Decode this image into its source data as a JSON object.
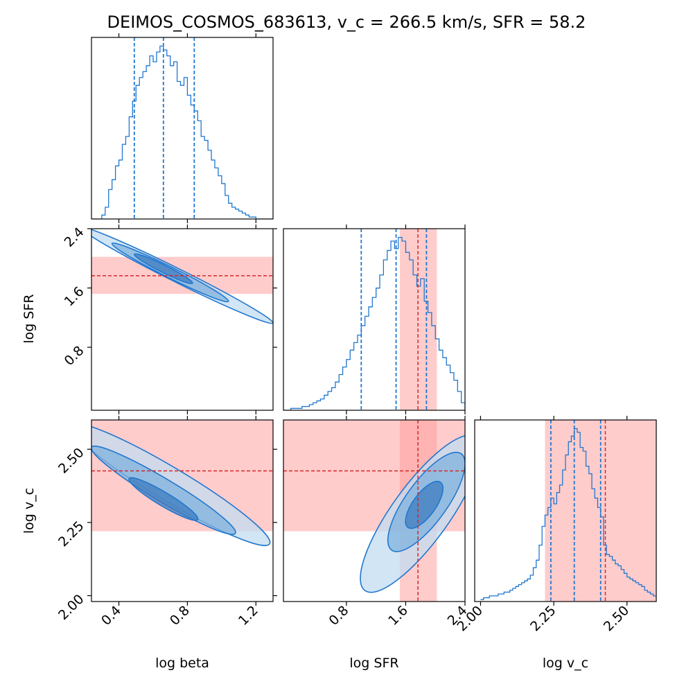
{
  "title": "DEIMOS_COSMOS_683613, v_c = 266.5 km/s, SFR = 58.2",
  "colors": {
    "posterior": "#1f77d0",
    "fill_outer": "#c2dcf0",
    "fill_mid": "#7fb3dd",
    "fill_inner": "#3d7cbf",
    "observed_line": "#d62728",
    "observed_band": "#ff9999"
  },
  "chart_data": {
    "type": "corner",
    "parameters": [
      {
        "name": "log beta",
        "label": "log beta",
        "range": [
          0.24,
          1.3
        ],
        "ticks": [
          0.4,
          0.8,
          1.2
        ],
        "tick_labels": [
          "0.4",
          "0.8",
          "1.2"
        ],
        "quantiles": [
          0.49,
          0.66,
          0.84
        ]
      },
      {
        "name": "log SFR",
        "label": "log SFR",
        "range": [
          -0.05,
          2.4
        ],
        "ticks": [
          0.8,
          1.6,
          2.4
        ],
        "tick_labels": [
          "0.8",
          "1.6",
          "2.4"
        ],
        "quantiles": [
          1.0,
          1.47,
          1.88
        ],
        "observed": {
          "value": 1.765,
          "low": 1.52,
          "high": 2.02
        }
      },
      {
        "name": "log v_c",
        "label": "log v_c",
        "range": [
          1.98,
          2.6
        ],
        "ticks": [
          2.0,
          2.25,
          2.5
        ],
        "tick_labels": [
          "2.00",
          "2.25",
          "2.50"
        ],
        "quantiles": [
          2.24,
          2.32,
          2.41
        ],
        "observed": {
          "value": 2.426,
          "low": 2.22,
          "high": 2.61
        }
      }
    ],
    "histograms": [
      {
        "parameter": "log beta",
        "x": [
          0.24,
          0.26,
          0.28,
          0.3,
          0.32,
          0.34,
          0.36,
          0.38,
          0.4,
          0.42,
          0.44,
          0.46,
          0.48,
          0.5,
          0.52,
          0.54,
          0.56,
          0.58,
          0.6,
          0.62,
          0.64,
          0.66,
          0.68,
          0.7,
          0.72,
          0.74,
          0.76,
          0.78,
          0.8,
          0.82,
          0.84,
          0.86,
          0.88,
          0.9,
          0.92,
          0.94,
          0.96,
          0.98,
          1.0,
          1.02,
          1.04,
          1.06,
          1.08,
          1.1,
          1.12,
          1.14,
          1.16,
          1.18,
          1.2,
          1.22,
          1.24,
          1.26,
          1.28,
          1.3
        ],
        "y": [
          0,
          0,
          0,
          0.02,
          0.06,
          0.15,
          0.2,
          0.27,
          0.3,
          0.38,
          0.42,
          0.52,
          0.6,
          0.68,
          0.72,
          0.75,
          0.78,
          0.83,
          0.8,
          0.85,
          0.88,
          0.86,
          0.83,
          0.78,
          0.8,
          0.7,
          0.68,
          0.72,
          0.63,
          0.58,
          0.55,
          0.5,
          0.42,
          0.4,
          0.35,
          0.3,
          0.26,
          0.22,
          0.18,
          0.12,
          0.08,
          0.06,
          0.05,
          0.04,
          0.03,
          0.02,
          0.01,
          0.01,
          0,
          0,
          0,
          0,
          0,
          0
        ]
      },
      {
        "parameter": "log SFR",
        "x": [
          -0.05,
          0.0,
          0.05,
          0.1,
          0.15,
          0.2,
          0.25,
          0.3,
          0.35,
          0.4,
          0.45,
          0.5,
          0.55,
          0.6,
          0.65,
          0.7,
          0.75,
          0.8,
          0.85,
          0.9,
          0.95,
          1.0,
          1.05,
          1.1,
          1.15,
          1.2,
          1.25,
          1.3,
          1.35,
          1.4,
          1.45,
          1.5,
          1.55,
          1.6,
          1.65,
          1.7,
          1.75,
          1.8,
          1.85,
          1.9,
          1.95,
          2.0,
          2.05,
          2.1,
          2.15,
          2.2,
          2.25,
          2.3,
          2.35,
          2.4
        ],
        "y": [
          0,
          0,
          0.01,
          0.01,
          0.01,
          0.02,
          0.02,
          0.03,
          0.04,
          0.05,
          0.06,
          0.08,
          0.1,
          0.12,
          0.15,
          0.19,
          0.23,
          0.27,
          0.32,
          0.36,
          0.4,
          0.45,
          0.5,
          0.55,
          0.6,
          0.65,
          0.72,
          0.8,
          0.85,
          0.9,
          0.86,
          0.92,
          0.9,
          0.84,
          0.8,
          0.72,
          0.66,
          0.7,
          0.58,
          0.52,
          0.45,
          0.38,
          0.32,
          0.28,
          0.24,
          0.2,
          0.16,
          0.1,
          0.04,
          0
        ]
      },
      {
        "parameter": "log v_c",
        "x": [
          2.0,
          2.01,
          2.02,
          2.03,
          2.04,
          2.05,
          2.06,
          2.07,
          2.08,
          2.09,
          2.1,
          2.11,
          2.12,
          2.13,
          2.14,
          2.15,
          2.16,
          2.17,
          2.18,
          2.19,
          2.2,
          2.21,
          2.22,
          2.23,
          2.24,
          2.25,
          2.26,
          2.27,
          2.28,
          2.29,
          2.3,
          2.31,
          2.32,
          2.33,
          2.34,
          2.35,
          2.36,
          2.37,
          2.38,
          2.39,
          2.4,
          2.41,
          2.42,
          2.43,
          2.44,
          2.45,
          2.46,
          2.47,
          2.48,
          2.49,
          2.5,
          2.51,
          2.52,
          2.53,
          2.54,
          2.55,
          2.56,
          2.57,
          2.58,
          2.59
        ],
        "y": [
          0.01,
          0.02,
          0.02,
          0.03,
          0.03,
          0.03,
          0.04,
          0.04,
          0.05,
          0.05,
          0.06,
          0.07,
          0.08,
          0.09,
          0.1,
          0.11,
          0.12,
          0.14,
          0.18,
          0.22,
          0.3,
          0.4,
          0.46,
          0.5,
          0.55,
          0.52,
          0.58,
          0.62,
          0.7,
          0.78,
          0.85,
          0.88,
          0.92,
          0.9,
          0.82,
          0.8,
          0.72,
          0.68,
          0.6,
          0.55,
          0.5,
          0.45,
          0.3,
          0.25,
          0.24,
          0.22,
          0.2,
          0.19,
          0.17,
          0.15,
          0.13,
          0.12,
          0.11,
          0.1,
          0.09,
          0.08,
          0.06,
          0.05,
          0.04,
          0.03
        ]
      }
    ],
    "contour_panels": [
      {
        "x_param": "log beta",
        "y_param": "log SFR",
        "levels": [
          {
            "level": "outer",
            "cx": 0.74,
            "cy": 1.77,
            "half_length": 0.56,
            "half_width": 0.07
          },
          {
            "level": "mid",
            "cx": 0.7,
            "cy": 1.81,
            "half_length": 0.34,
            "half_width": 0.05
          },
          {
            "level": "inner",
            "cx": 0.66,
            "cy": 1.86,
            "half_length": 0.17,
            "half_width": 0.025
          }
        ]
      },
      {
        "x_param": "log beta",
        "y_param": "log v_c",
        "levels": [
          {
            "level": "outer",
            "cx": 0.7,
            "cy": 2.38,
            "half_length": 0.58,
            "half_width": 0.055
          },
          {
            "level": "mid",
            "cx": 0.66,
            "cy": 2.36,
            "half_length": 0.42,
            "half_width": 0.035
          },
          {
            "level": "inner",
            "cx": 0.66,
            "cy": 2.33,
            "half_length": 0.2,
            "half_width": 0.018
          }
        ]
      },
      {
        "x_param": "log SFR",
        "y_param": "log v_c",
        "levels": [
          {
            "level": "outer",
            "cx": 1.8,
            "cy": 2.28,
            "half_length": 0.75,
            "half_width": 0.1
          },
          {
            "level": "mid",
            "cx": 1.88,
            "cy": 2.32,
            "half_length": 0.47,
            "half_width": 0.07
          },
          {
            "level": "inner",
            "cx": 1.85,
            "cy": 2.31,
            "half_length": 0.22,
            "half_width": 0.035
          }
        ]
      }
    ],
    "ylabels": [
      "log SFR",
      "log v_c"
    ],
    "xlabels": [
      "log beta",
      "log SFR",
      "log v_c"
    ]
  }
}
